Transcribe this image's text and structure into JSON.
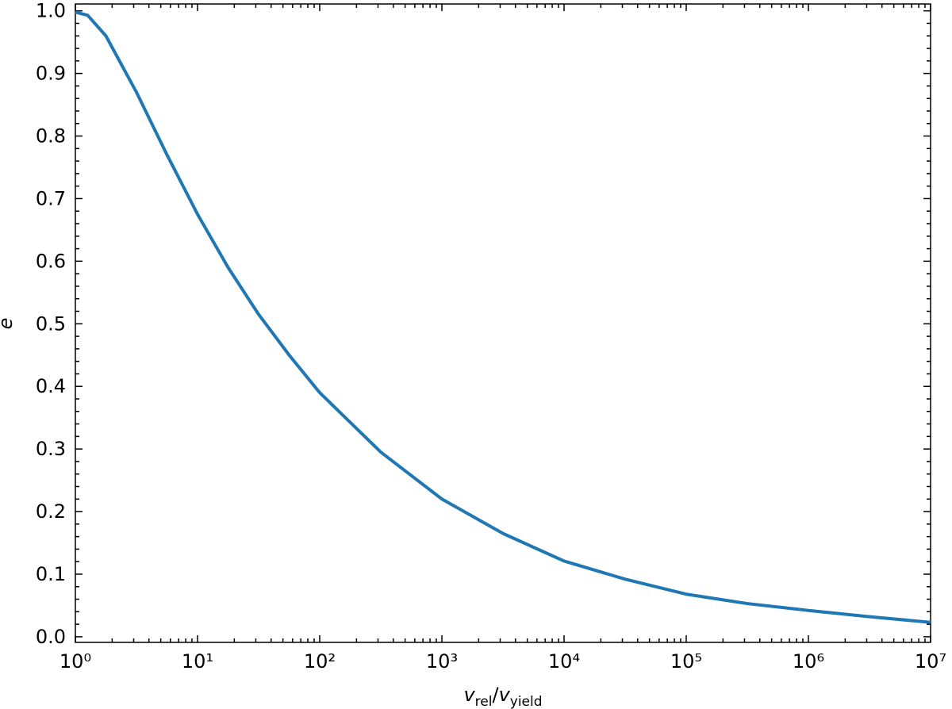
{
  "chart_data": {
    "type": "line",
    "xlabel": [
      "v",
      "rel",
      "/",
      "v",
      "yield"
    ],
    "ylabel": "e",
    "x": [
      1,
      1.259,
      1.778,
      3.162,
      5.623,
      10,
      17.78,
      31.62,
      56.23,
      100,
      316.2,
      1000,
      3162,
      10000,
      31623,
      100000,
      316228,
      1000000,
      3162278,
      10000000
    ],
    "series": [
      {
        "color": "#1f77b4",
        "values": [
          0.998,
          0.993,
          0.96,
          0.87,
          0.77,
          0.675,
          0.59,
          0.515,
          0.45,
          0.39,
          0.295,
          0.22,
          0.165,
          0.121,
          0.092,
          0.068,
          0.053,
          0.042,
          0.032,
          0.023
        ]
      }
    ],
    "xscale": "log",
    "xlim": [
      1,
      10000000
    ],
    "xticks": [
      {
        "value": 1,
        "label": "10⁰"
      },
      {
        "value": 10,
        "label": "10¹"
      },
      {
        "value": 100,
        "label": "10²"
      },
      {
        "value": 1000,
        "label": "10³"
      },
      {
        "value": 10000,
        "label": "10⁴"
      },
      {
        "value": 100000,
        "label": "10⁵"
      },
      {
        "value": 1000000,
        "label": "10⁶"
      },
      {
        "value": 10000000,
        "label": "10⁷"
      }
    ],
    "ylim": [
      -0.009,
      1.011
    ],
    "yticks": [
      {
        "value": 0,
        "label": "0.0"
      },
      0.1,
      0.2,
      0.3,
      0.4,
      0.5,
      0.6,
      0.7,
      0.8,
      0.9,
      {
        "value": 1,
        "label": "1.0"
      }
    ],
    "grid": false
  }
}
